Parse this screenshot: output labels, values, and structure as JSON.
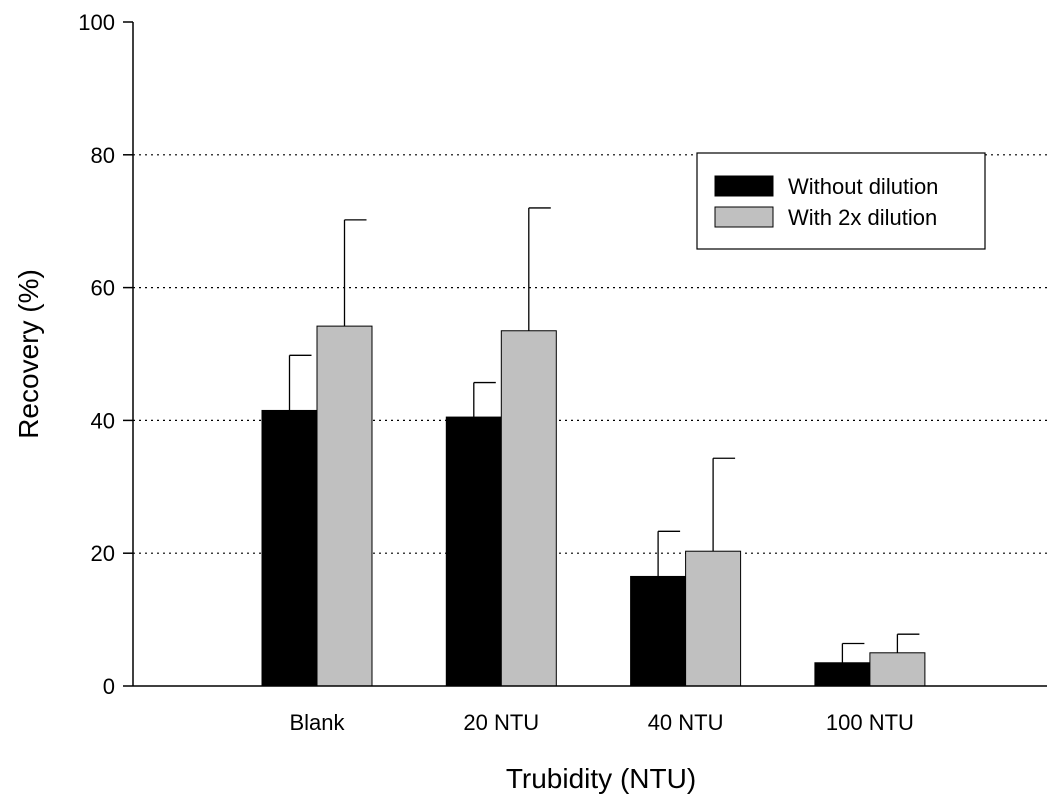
{
  "chart_data": {
    "type": "bar",
    "title": "",
    "xlabel": "Trubidity (NTU)",
    "ylabel": "Recovery (%)",
    "ylim": [
      0,
      100
    ],
    "yticks": [
      "0",
      "20",
      "40",
      "60",
      "80",
      "100"
    ],
    "grid": "horizontal dotted",
    "legend_position": "top-right",
    "categories": [
      "Blank",
      "20 NTU",
      "40 NTU",
      "100 NTU"
    ],
    "series": [
      {
        "name": "Without dilution",
        "color": "#000000",
        "values": [
          41.5,
          40.5,
          16.5,
          3.5
        ],
        "error": [
          8.3,
          5.2,
          6.8,
          2.9
        ]
      },
      {
        "name": "With 2x dilution",
        "color": "#c0c0c0",
        "values": [
          54.2,
          53.5,
          20.3,
          5.0
        ],
        "error": [
          16.0,
          18.5,
          14.0,
          2.8
        ]
      }
    ]
  }
}
